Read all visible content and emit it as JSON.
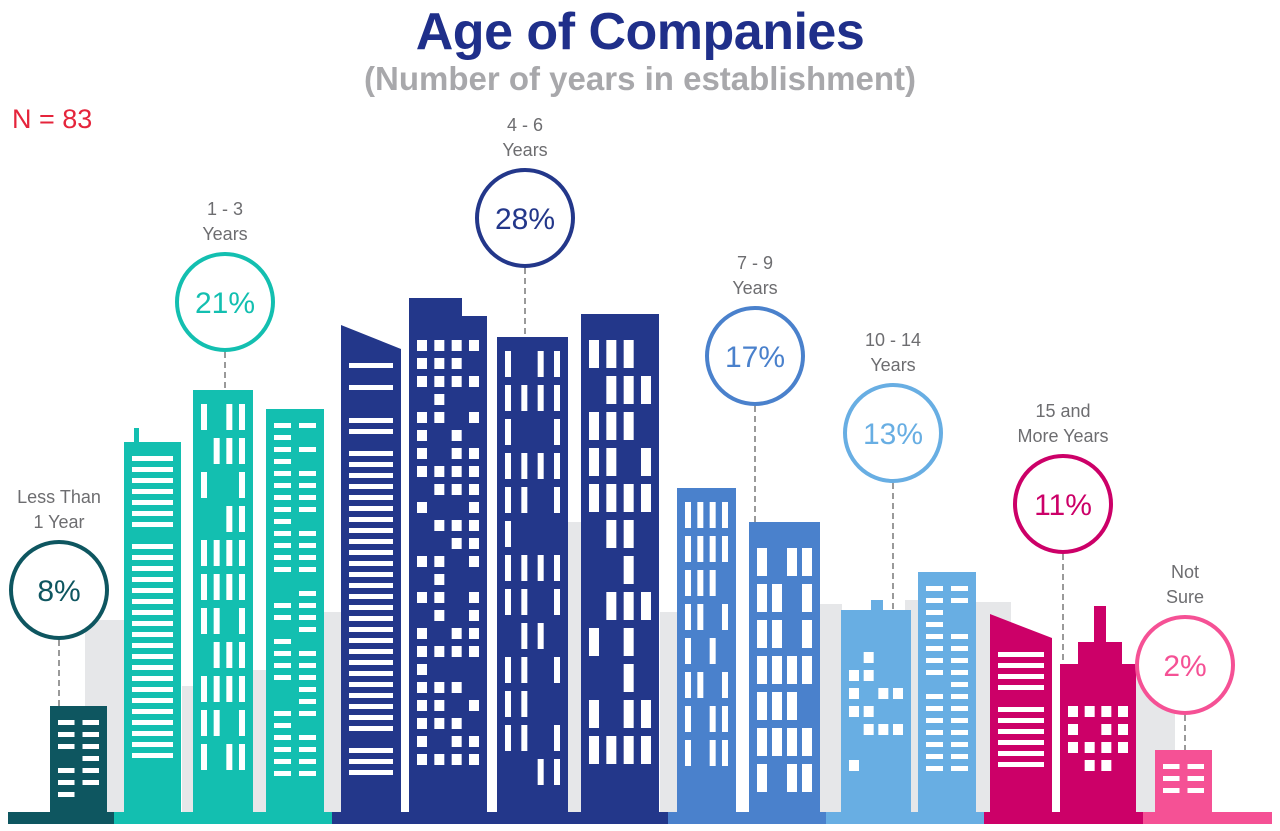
{
  "header": {
    "title": "Age of Companies",
    "subtitle": "(Number of years in establishment)",
    "sample_size": "N = 83"
  },
  "colors": {
    "title": "#1f2f8a",
    "subtitle": "#a8a8ab",
    "sample_size": "#e5243b",
    "label_text": "#6d6d70",
    "backdrop": "#e6e7e9",
    "connector": "#9a9a9a"
  },
  "chart_data": {
    "type": "bar",
    "style": "pictorial-skyline",
    "title": "Age of Companies",
    "subtitle": "(Number of years in establishment)",
    "annotation": "N = 83",
    "unit": "%",
    "categories": [
      "Less Than 1 Year",
      "1 - 3 Years",
      "4 - 6 Years",
      "7 - 9 Years",
      "10 - 14 Years",
      "15 and More Years",
      "Not Sure"
    ],
    "label_lines": [
      [
        "Less Than",
        "1 Year"
      ],
      [
        "1 - 3",
        "Years"
      ],
      [
        "4 - 6",
        "Years"
      ],
      [
        "7 - 9",
        "Years"
      ],
      [
        "10 - 14",
        "Years"
      ],
      [
        "15 and",
        "More Years"
      ],
      [
        "Not",
        "Sure"
      ]
    ],
    "values": [
      8,
      21,
      28,
      17,
      13,
      11,
      2
    ],
    "value_labels": [
      "8%",
      "21%",
      "28%",
      "17%",
      "13%",
      "11%",
      "2%"
    ],
    "series_colors": [
      "#0e5660",
      "#13bfb0",
      "#23378a",
      "#4a81cc",
      "#68aee3",
      "#cc0068",
      "#f55195"
    ],
    "xlabel": "",
    "ylabel": "",
    "ylim": [
      0,
      30
    ],
    "grid": false,
    "legend": "none"
  }
}
